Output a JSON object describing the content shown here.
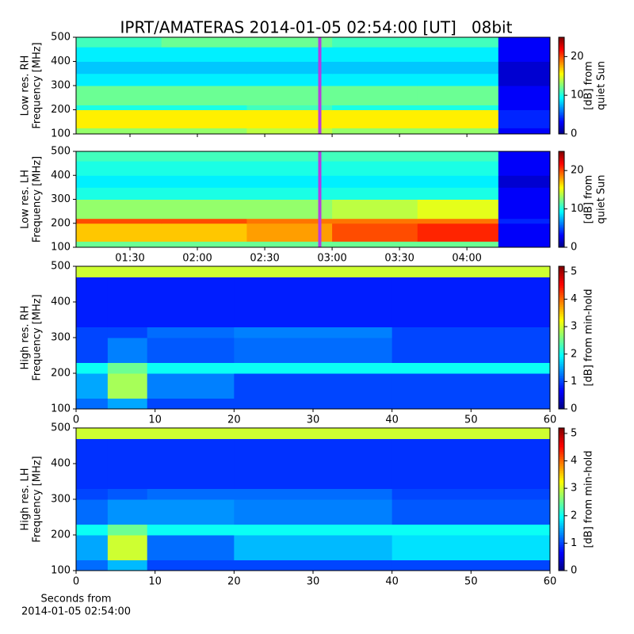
{
  "chart_data": [
    {
      "type": "heatmap",
      "title": "IPRT/AMATERAS 2014-01-05 02:54:00 [UT]   08bit",
      "ylabel": [
        "Low res. RH",
        "Frequency [MHz]"
      ],
      "colorbar_label": [
        "[dB] from",
        "quiet Sun"
      ],
      "colormap": "jet",
      "sharex": true,
      "xlim": [
        66,
        277
      ],
      "ylim": [
        100,
        500
      ],
      "yticks": [
        100,
        200,
        300,
        400,
        500
      ],
      "zlim": [
        0,
        25
      ],
      "zticks": [
        0,
        10,
        20
      ],
      "marker_x": 174.5,
      "marker_color": "#b53ee0",
      "x_edges": [
        66,
        104,
        142,
        180,
        218,
        254,
        277
      ],
      "y_edges": [
        100,
        125,
        200,
        220,
        300,
        350,
        400,
        460,
        500
      ],
      "z": [
        [
          13,
          13,
          14,
          13,
          13,
          3
        ],
        [
          16,
          16,
          16,
          16,
          16,
          4
        ],
        [
          10,
          10,
          11,
          10,
          10,
          3
        ],
        [
          12,
          12,
          12,
          12,
          12,
          3
        ],
        [
          9,
          9,
          9,
          9,
          9,
          2
        ],
        [
          8,
          8,
          8,
          8,
          8,
          2
        ],
        [
          9,
          9,
          9,
          9,
          9,
          3
        ],
        [
          11,
          12,
          12,
          11,
          11,
          3
        ]
      ]
    },
    {
      "type": "heatmap",
      "ylabel": [
        "Low res. LH",
        "Frequency [MHz]"
      ],
      "colorbar_label": [
        "[dB] from",
        "quiet Sun"
      ],
      "colormap": "jet",
      "xlim": [
        66,
        277
      ],
      "ylim": [
        100,
        500
      ],
      "yticks": [
        100,
        200,
        300,
        400,
        500
      ],
      "xticks": [
        {
          "value": 90,
          "label": "01:30"
        },
        {
          "value": 120,
          "label": "02:00"
        },
        {
          "value": 150,
          "label": "02:30"
        },
        {
          "value": 180,
          "label": "03:00"
        },
        {
          "value": 210,
          "label": "03:30"
        },
        {
          "value": 240,
          "label": "04:00"
        }
      ],
      "zlim": [
        0,
        25
      ],
      "zticks": [
        0,
        10,
        20
      ],
      "marker_x": 174.5,
      "marker_color": "#b53ee0",
      "x_edges": [
        66,
        104,
        142,
        180,
        218,
        254,
        277
      ],
      "y_edges": [
        100,
        125,
        200,
        220,
        300,
        350,
        400,
        460,
        500
      ],
      "z": [
        [
          12,
          12,
          12,
          12,
          12,
          3
        ],
        [
          17,
          17,
          18,
          20,
          21,
          3
        ],
        [
          20,
          20,
          19,
          19,
          19,
          4
        ],
        [
          13,
          13,
          13,
          14,
          15,
          3
        ],
        [
          10,
          10,
          10,
          10,
          10,
          3
        ],
        [
          9,
          9,
          9,
          9,
          9,
          2
        ],
        [
          10,
          10,
          10,
          10,
          10,
          3
        ],
        [
          11,
          11,
          11,
          11,
          11,
          3
        ]
      ]
    },
    {
      "type": "heatmap",
      "ylabel": [
        "High res. RH",
        "Frequency [MHz]"
      ],
      "colorbar_label": [
        "[dB] from min-hold"
      ],
      "colormap": "jet",
      "xlim": [
        0,
        60
      ],
      "ylim": [
        100,
        500
      ],
      "yticks": [
        100,
        200,
        300,
        400,
        500
      ],
      "zlim": [
        0,
        5.2
      ],
      "zticks": [
        0,
        1,
        2,
        3,
        4,
        5
      ],
      "sharex_labels": false,
      "xticks": [
        0,
        10,
        20,
        30,
        40,
        50,
        60
      ],
      "x_edges": [
        0,
        4,
        9,
        20,
        40,
        60
      ],
      "y_edges": [
        100,
        130,
        200,
        230,
        300,
        330,
        470,
        500
      ],
      "z": [
        [
          1.2,
          1.5,
          1.0,
          1.0,
          1.0
        ],
        [
          1.5,
          2.8,
          1.3,
          1.0,
          1.0
        ],
        [
          2.0,
          2.5,
          2.0,
          2.0,
          2.0
        ],
        [
          1.0,
          1.3,
          1.1,
          1.2,
          1.0
        ],
        [
          1.0,
          1.0,
          1.2,
          1.3,
          1.0
        ],
        [
          0.8,
          0.8,
          0.8,
          0.8,
          0.8
        ],
        [
          3.0,
          3.0,
          3.0,
          3.0,
          3.0
        ]
      ]
    },
    {
      "type": "heatmap",
      "ylabel": [
        "High res. LH",
        "Frequency [MHz]"
      ],
      "colorbar_label": [
        "[dB] from min-hold"
      ],
      "xlabel": [
        "Seconds from",
        "2014-01-05 02:54:00"
      ],
      "colormap": "jet",
      "xlim": [
        0,
        60
      ],
      "ylim": [
        100,
        500
      ],
      "yticks": [
        100,
        200,
        300,
        400,
        500
      ],
      "zlim": [
        0,
        5.2
      ],
      "zticks": [
        0,
        1,
        2,
        3,
        4,
        5
      ],
      "xticks": [
        0,
        10,
        20,
        30,
        40,
        50,
        60
      ],
      "x_edges": [
        0,
        4,
        9,
        20,
        40,
        60
      ],
      "y_edges": [
        100,
        130,
        200,
        230,
        300,
        330,
        470,
        500
      ],
      "z": [
        [
          1.2,
          1.6,
          1.0,
          1.0,
          1.0
        ],
        [
          1.5,
          3.0,
          1.2,
          1.6,
          1.8
        ],
        [
          2.0,
          2.5,
          2.0,
          2.0,
          2.0
        ],
        [
          1.2,
          1.4,
          1.4,
          1.3,
          1.1
        ],
        [
          1.0,
          1.1,
          1.2,
          1.2,
          1.0
        ],
        [
          0.9,
          0.9,
          0.9,
          0.9,
          0.9
        ],
        [
          3.0,
          3.0,
          3.0,
          3.0,
          3.0
        ]
      ]
    }
  ]
}
